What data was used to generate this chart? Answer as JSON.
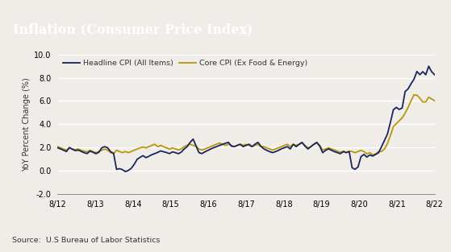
{
  "title": "Inflation (Consumer Price Index)",
  "ylabel": "YoY Percent Change (%)",
  "source": "Source:  U.S Bureau of Labor Statistics",
  "title_bg_color": "#484848",
  "title_text_color": "#ffffff",
  "plot_bg_color": "#f0ede8",
  "line1_label": "Headline CPI (All Items)",
  "line2_label": "Core CPI (Ex Food & Energy)",
  "line1_color": "#1a2560",
  "line2_color": "#b8960c",
  "ylim": [
    -2.0,
    10.0
  ],
  "yticks": [
    -2.0,
    0.0,
    2.0,
    4.0,
    6.0,
    8.0,
    10.0
  ],
  "xtick_labels": [
    "8/12",
    "8/13",
    "8/14",
    "8/15",
    "8/16",
    "8/17",
    "8/18",
    "8/19",
    "8/20",
    "8/21",
    "8/22"
  ],
  "headline_cpi": [
    1.97,
    1.87,
    1.76,
    1.65,
    1.99,
    1.84,
    1.73,
    1.77,
    1.66,
    1.55,
    1.47,
    1.69,
    1.58,
    1.46,
    1.58,
    1.97,
    2.07,
    1.97,
    1.63,
    1.5,
    0.12,
    0.17,
    0.09,
    -0.08,
    0.02,
    0.2,
    0.54,
    0.98,
    1.15,
    1.29,
    1.12,
    1.24,
    1.38,
    1.47,
    1.58,
    1.7,
    1.63,
    1.56,
    1.47,
    1.62,
    1.55,
    1.46,
    1.6,
    1.87,
    2.07,
    2.44,
    2.72,
    2.13,
    1.55,
    1.47,
    1.62,
    1.74,
    1.87,
    1.98,
    2.07,
    2.18,
    2.27,
    2.36,
    2.44,
    2.11,
    2.07,
    2.18,
    2.27,
    2.07,
    2.18,
    2.27,
    2.07,
    2.27,
    2.44,
    2.11,
    1.88,
    1.75,
    1.64,
    1.55,
    1.64,
    1.75,
    1.88,
    1.98,
    2.07,
    1.87,
    2.27,
    2.07,
    2.27,
    2.44,
    2.11,
    1.87,
    2.07,
    2.27,
    2.44,
    2.11,
    1.55,
    1.75,
    1.88,
    1.75,
    1.64,
    1.55,
    1.46,
    1.64,
    1.55,
    1.64,
    0.25,
    0.12,
    0.32,
    1.2,
    1.4,
    1.17,
    1.35,
    1.26,
    1.4,
    1.55,
    2.07,
    2.62,
    3.16,
    4.16,
    5.24,
    5.45,
    5.27,
    5.4,
    6.81,
    7.04,
    7.48,
    7.87,
    8.54,
    8.26,
    8.52,
    8.26,
    8.99,
    8.52,
    8.26
  ],
  "core_cpi": [
    2.07,
    1.97,
    1.87,
    1.76,
    1.97,
    1.87,
    1.8,
    1.87,
    1.76,
    1.68,
    1.62,
    1.75,
    1.65,
    1.55,
    1.65,
    1.76,
    1.86,
    1.76,
    1.55,
    1.46,
    1.76,
    1.65,
    1.55,
    1.65,
    1.55,
    1.65,
    1.76,
    1.86,
    1.96,
    2.04,
    1.96,
    2.07,
    2.18,
    2.27,
    2.07,
    2.18,
    2.07,
    1.96,
    1.86,
    1.96,
    1.87,
    1.78,
    1.87,
    2.07,
    2.18,
    2.28,
    2.18,
    2.07,
    1.87,
    1.78,
    1.87,
    1.97,
    2.07,
    2.18,
    2.28,
    2.38,
    2.27,
    2.18,
    2.27,
    2.18,
    2.07,
    2.18,
    2.27,
    2.18,
    2.27,
    2.18,
    2.07,
    2.18,
    2.27,
    2.07,
    2.07,
    1.96,
    1.87,
    1.78,
    1.87,
    1.96,
    2.07,
    2.18,
    2.27,
    2.07,
    2.27,
    2.18,
    2.27,
    2.38,
    2.18,
    1.96,
    2.07,
    2.27,
    2.38,
    2.18,
    1.78,
    1.87,
    1.96,
    1.87,
    1.78,
    1.68,
    1.58,
    1.68,
    1.58,
    1.68,
    1.65,
    1.55,
    1.65,
    1.75,
    1.65,
    1.45,
    1.55,
    1.35,
    1.45,
    1.65,
    1.65,
    1.87,
    2.35,
    3.02,
    3.8,
    4.05,
    4.29,
    4.55,
    4.96,
    5.45,
    6.02,
    6.52,
    6.5,
    6.24,
    5.92,
    5.92,
    6.33,
    6.17,
    6.02
  ]
}
